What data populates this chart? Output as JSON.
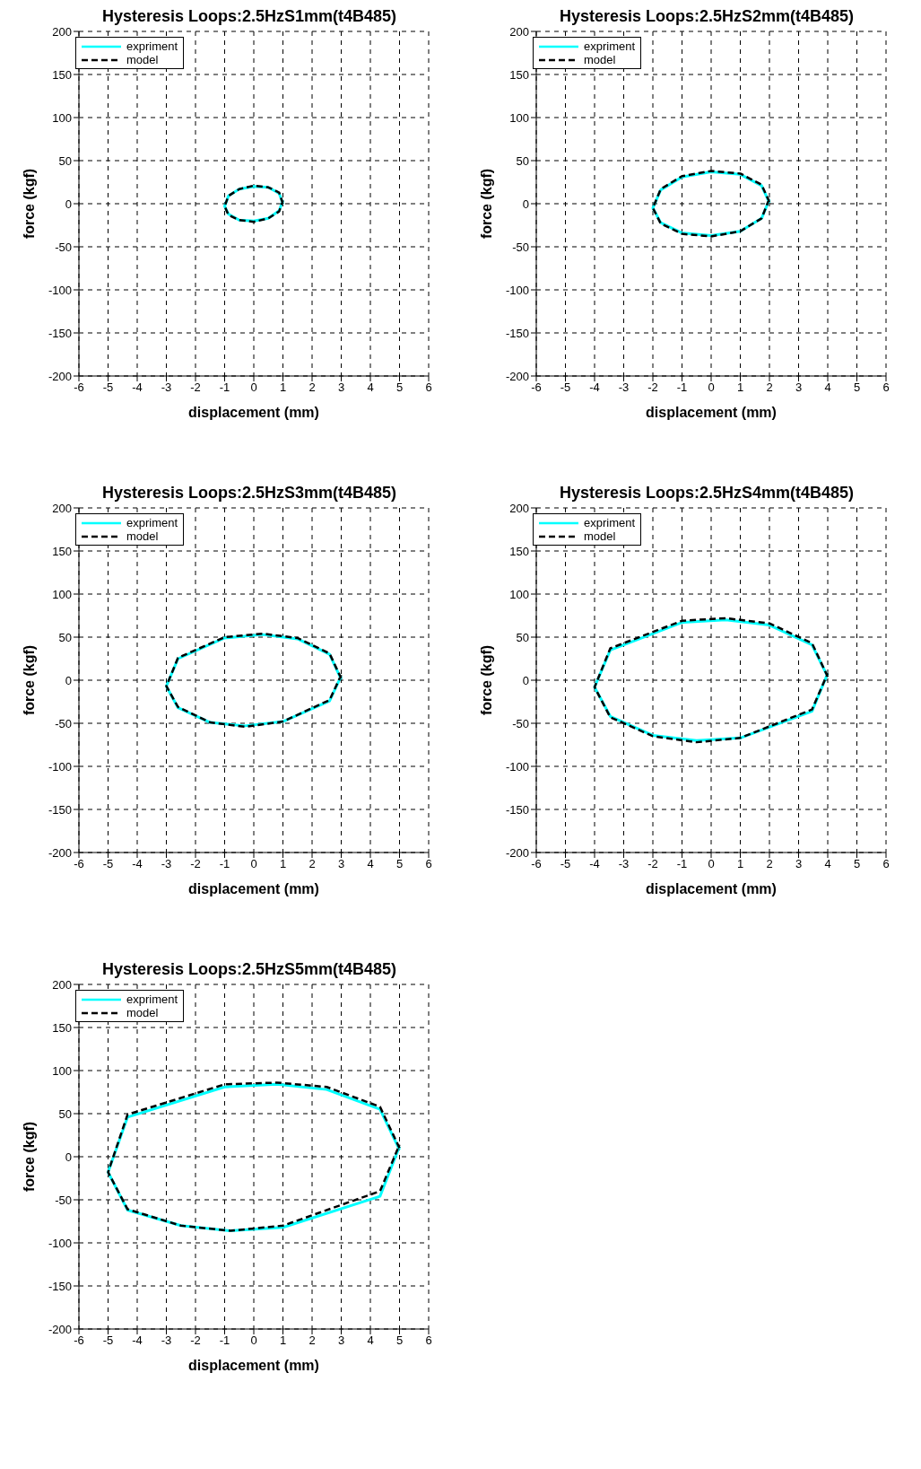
{
  "chart_data": [
    {
      "type": "line",
      "title": "Hysteresis Loops:2.5HzS1mm(t4B485)",
      "xlabel": "displacement (mm)",
      "ylabel": "force (kgf)",
      "xlim": [
        -6,
        6
      ],
      "xticks": [
        -6,
        -5,
        -4,
        -3,
        -2,
        -1,
        0,
        1,
        2,
        3,
        4,
        5,
        6
      ],
      "ylim": [
        -200,
        200
      ],
      "yticks": [
        -200,
        -150,
        -100,
        -50,
        0,
        50,
        100,
        150,
        200
      ],
      "grid": true,
      "legend": "top left",
      "series": [
        {
          "name": "expriment",
          "color": "#00ffff",
          "line_style": "solid",
          "x": [
            1,
            0.87,
            0.5,
            0,
            -0.5,
            -0.87,
            -1,
            -0.87,
            -0.5,
            0,
            0.5,
            0.87,
            1
          ],
          "values": [
            0,
            12,
            19,
            20,
            17,
            9,
            -3,
            -12,
            -19,
            -20,
            -17,
            -8,
            4
          ]
        },
        {
          "name": "model",
          "color": "#000000",
          "line_style": "dashed",
          "x": [
            1,
            0.87,
            0.5,
            0,
            -0.5,
            -0.87,
            -1,
            -0.87,
            -0.5,
            0,
            0.5,
            0.87,
            1
          ],
          "values": [
            0,
            13,
            19,
            21,
            17,
            9,
            -3,
            -13,
            -19,
            -21,
            -17,
            -9,
            4
          ]
        }
      ]
    },
    {
      "type": "line",
      "title": "Hysteresis Loops:2.5HzS2mm(t4B485)",
      "xlabel": "displacement (mm)",
      "ylabel": "force (kgf)",
      "xlim": [
        -6,
        6
      ],
      "xticks": [
        -6,
        -5,
        -4,
        -3,
        -2,
        -1,
        0,
        1,
        2,
        3,
        4,
        5,
        6
      ],
      "ylim": [
        -200,
        200
      ],
      "yticks": [
        -200,
        -150,
        -100,
        -50,
        0,
        50,
        100,
        150,
        200
      ],
      "grid": true,
      "legend": "top left",
      "series": [
        {
          "name": "expriment",
          "color": "#00ffff",
          "line_style": "solid",
          "x": [
            2,
            1.73,
            1,
            0,
            -1,
            -1.73,
            -2,
            -1.73,
            -1,
            0,
            1,
            1.73,
            2
          ],
          "values": [
            1,
            21,
            34,
            37,
            31,
            16,
            -5,
            -22,
            -34,
            -37,
            -32,
            -17,
            5
          ]
        },
        {
          "name": "model",
          "color": "#000000",
          "line_style": "dashed",
          "x": [
            2,
            1.73,
            1,
            0,
            -1,
            -1.73,
            -2,
            -1.73,
            -1,
            0,
            1,
            1.73,
            2
          ],
          "values": [
            2,
            22,
            35,
            38,
            32,
            17,
            -5,
            -23,
            -35,
            -38,
            -32,
            -17,
            6
          ]
        }
      ]
    },
    {
      "type": "line",
      "title": "Hysteresis Loops:2.5HzS3mm(t4B485)",
      "xlabel": "displacement (mm)",
      "ylabel": "force (kgf)",
      "xlim": [
        -6,
        6
      ],
      "xticks": [
        -6,
        -5,
        -4,
        -3,
        -2,
        -1,
        0,
        1,
        2,
        3,
        4,
        5,
        6
      ],
      "ylim": [
        -200,
        200
      ],
      "yticks": [
        -200,
        -150,
        -100,
        -50,
        0,
        50,
        100,
        150,
        200
      ],
      "grid": true,
      "legend": "top left",
      "series": [
        {
          "name": "expriment",
          "color": "#00ffff",
          "line_style": "solid",
          "x": [
            3,
            2.6,
            1.5,
            0.3,
            -1,
            -2.6,
            -3,
            -2.6,
            -1.5,
            -0.3,
            1,
            2.6,
            3
          ],
          "values": [
            1,
            30,
            48,
            53,
            49,
            25,
            -7,
            -32,
            -49,
            -53,
            -48,
            -24,
            5
          ]
        },
        {
          "name": "model",
          "color": "#000000",
          "line_style": "dashed",
          "x": [
            3,
            2.6,
            1.5,
            0.3,
            -1,
            -2.6,
            -3,
            -2.6,
            -1.5,
            -0.3,
            1,
            2.6,
            3
          ],
          "values": [
            2,
            31,
            49,
            54,
            50,
            26,
            -7,
            -31,
            -49,
            -54,
            -48,
            -23,
            6
          ]
        }
      ]
    },
    {
      "type": "line",
      "title": "Hysteresis Loops:2.5HzS4mm(t4B485)",
      "xlabel": "displacement (mm)",
      "ylabel": "force (kgf)",
      "xlim": [
        -6,
        6
      ],
      "xticks": [
        -6,
        -5,
        -4,
        -3,
        -2,
        -1,
        0,
        1,
        2,
        3,
        4,
        5,
        6
      ],
      "ylim": [
        -200,
        200
      ],
      "yticks": [
        -200,
        -150,
        -100,
        -50,
        0,
        50,
        100,
        150,
        200
      ],
      "grid": true,
      "legend": "top left",
      "series": [
        {
          "name": "expriment",
          "color": "#00ffff",
          "line_style": "solid",
          "x": [
            4,
            3.46,
            2,
            0.5,
            -1,
            -3.46,
            -4,
            -3.46,
            -2,
            -0.5,
            1,
            3.46,
            4
          ],
          "values": [
            4,
            41,
            64,
            70,
            67,
            35,
            -8,
            -42,
            -64,
            -70,
            -67,
            -36,
            8
          ]
        },
        {
          "name": "model",
          "color": "#000000",
          "line_style": "dashed",
          "x": [
            4,
            3.46,
            2,
            0.5,
            -1,
            -3.46,
            -4,
            -3.46,
            -2,
            -0.5,
            1,
            3.46,
            4
          ],
          "values": [
            4,
            43,
            66,
            72,
            69,
            37,
            -8,
            -43,
            -65,
            -72,
            -67,
            -34,
            8
          ]
        }
      ]
    },
    {
      "type": "line",
      "title": "Hysteresis Loops:2.5HzS5mm(t4B485)",
      "xlabel": "displacement (mm)",
      "ylabel": "force (kgf)",
      "xlim": [
        -6,
        6
      ],
      "xticks": [
        -6,
        -5,
        -4,
        -3,
        -2,
        -1,
        0,
        1,
        2,
        3,
        4,
        5,
        6
      ],
      "ylim": [
        -200,
        200
      ],
      "yticks": [
        -200,
        -150,
        -100,
        -50,
        0,
        50,
        100,
        150,
        200
      ],
      "grid": true,
      "legend": "top left",
      "series": [
        {
          "name": "expriment",
          "color": "#00ffff",
          "line_style": "solid",
          "x": [
            5,
            4.33,
            2.5,
            0.8,
            -1,
            -4.33,
            -5,
            -4.33,
            -2.5,
            -0.8,
            1,
            4.33,
            5
          ],
          "values": [
            8,
            55,
            78,
            84,
            81,
            46,
            -18,
            -62,
            -80,
            -86,
            -82,
            -46,
            12
          ]
        },
        {
          "name": "model",
          "color": "#000000",
          "line_style": "dashed",
          "x": [
            5,
            4.33,
            2.5,
            0.8,
            -1,
            -4.33,
            -5,
            -4.33,
            -2.5,
            -0.8,
            1,
            4.33,
            5
          ],
          "values": [
            10,
            58,
            81,
            86,
            84,
            49,
            -18,
            -61,
            -80,
            -86,
            -80,
            -40,
            14
          ]
        }
      ]
    }
  ]
}
